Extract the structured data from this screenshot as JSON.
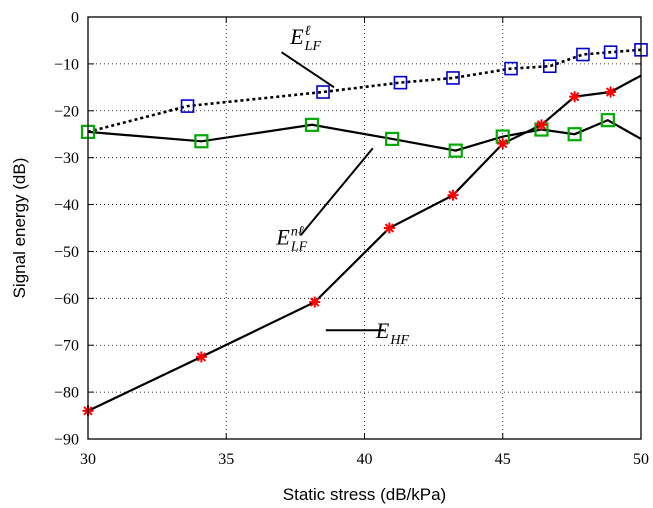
{
  "chart_data": {
    "type": "line",
    "xlabel": "Static stress (dB/kPa)",
    "ylabel": "Signal energy (dB)",
    "xlim": [
      30,
      50
    ],
    "ylim": [
      -90,
      0
    ],
    "xticks": [
      30,
      35,
      40,
      45,
      50
    ],
    "yticks": [
      0,
      -10,
      -20,
      -30,
      -40,
      -50,
      -60,
      -70,
      -80,
      -90
    ],
    "xtick_labels": [
      "30",
      "35",
      "40",
      "45",
      "50"
    ],
    "ytick_labels": [
      "0",
      "−10",
      "−20",
      "−30",
      "−40",
      "−50",
      "−60",
      "−70",
      "−80",
      "−90"
    ],
    "grid": true,
    "series": [
      {
        "name": "E_LF^ℓ",
        "label_base": "E",
        "label_sub": "LF",
        "label_sup": "ℓ",
        "line_style": "dotted",
        "line_color": "#000000",
        "marker": "square",
        "marker_color": "#0000cc",
        "x": [
          30.0,
          33.6,
          38.5,
          41.3,
          43.2,
          45.3,
          46.7,
          47.9,
          48.9,
          50.0
        ],
        "y": [
          -24.5,
          -19.0,
          -16.0,
          -14.0,
          -13.0,
          -11.0,
          -10.5,
          -8.0,
          -7.5,
          -7.0
        ]
      },
      {
        "name": "E_LF^nℓ",
        "label_base": "E",
        "label_sub": "LF",
        "label_sup": "nℓ",
        "line_style": "solid",
        "line_color": "#000000",
        "marker": "square",
        "marker_color": "#00aa00",
        "x": [
          30.0,
          34.1,
          38.1,
          41.0,
          43.3,
          45.0,
          46.4,
          47.6,
          48.8,
          50.0
        ],
        "y": [
          -24.5,
          -26.5,
          -23.0,
          -26.0,
          -28.5,
          -25.5,
          -24.0,
          -25.0,
          -22.0,
          -26.0
        ],
        "marker_indices": [
          0,
          1,
          2,
          3,
          4,
          5,
          6,
          7,
          8
        ]
      },
      {
        "name": "E_HF",
        "label_base": "E",
        "label_sub": "HF",
        "label_sup": "",
        "line_style": "solid",
        "line_color": "#000000",
        "marker": "star",
        "marker_color": "#ff0000",
        "x": [
          30.0,
          34.1,
          38.2,
          40.9,
          43.2,
          45.0,
          46.4,
          47.6,
          48.9,
          50.0
        ],
        "y": [
          -84.0,
          -72.5,
          -60.8,
          -45.0,
          -38.0,
          -27.0,
          -23.0,
          -17.0,
          -16.0,
          -12.5
        ],
        "marker_indices": [
          0,
          1,
          2,
          3,
          4,
          5,
          6,
          7,
          8
        ]
      }
    ],
    "annotations": [
      {
        "series_index": 0,
        "text_x": 37.8,
        "text_y": -5.8,
        "line_from": [
          37.0,
          -7.5
        ],
        "line_to": [
          38.9,
          -15.0
        ]
      },
      {
        "series_index": 1,
        "text_x": 37.3,
        "text_y": -48.5,
        "line_from": [
          37.7,
          -46.5
        ],
        "line_to": [
          40.3,
          -28.0
        ]
      },
      {
        "series_index": 2,
        "text_x": 40.9,
        "text_y": -68.5,
        "line_from": [
          38.6,
          -66.8
        ],
        "line_to": [
          40.7,
          -66.8
        ]
      }
    ]
  }
}
